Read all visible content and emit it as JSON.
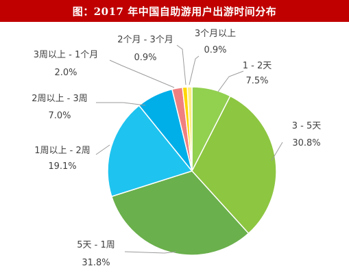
{
  "chart_data": {
    "type": "pie",
    "title": "图：2017 年中国自助游用户出游时间分布",
    "slices": [
      {
        "label": "1 - 2天",
        "value": 7.5,
        "value_text": "7.5%",
        "color": "#92d050"
      },
      {
        "label": "3 - 5天",
        "value": 30.8,
        "value_text": "30.8%",
        "color": "#8dc641"
      },
      {
        "label": "5天 - 1周",
        "value": 31.8,
        "value_text": "31.8%",
        "color": "#6ab04c"
      },
      {
        "label": "1周以上 - 2周",
        "value": 19.1,
        "value_text": "19.1%",
        "color": "#1fc3ef"
      },
      {
        "label": "2周以上 - 3周",
        "value": 7.0,
        "value_text": "7.0%",
        "color": "#00aee8"
      },
      {
        "label": "3周以上 - 1个月",
        "value": 2.0,
        "value_text": "2.0%",
        "color": "#f08080"
      },
      {
        "label": "2个月 - 3个月",
        "value": 0.9,
        "value_text": "0.9%",
        "color": "#ffd700"
      },
      {
        "label": "3个月以上",
        "value": 0.9,
        "value_text": "0.9%",
        "color": "#ffef80"
      }
    ]
  }
}
